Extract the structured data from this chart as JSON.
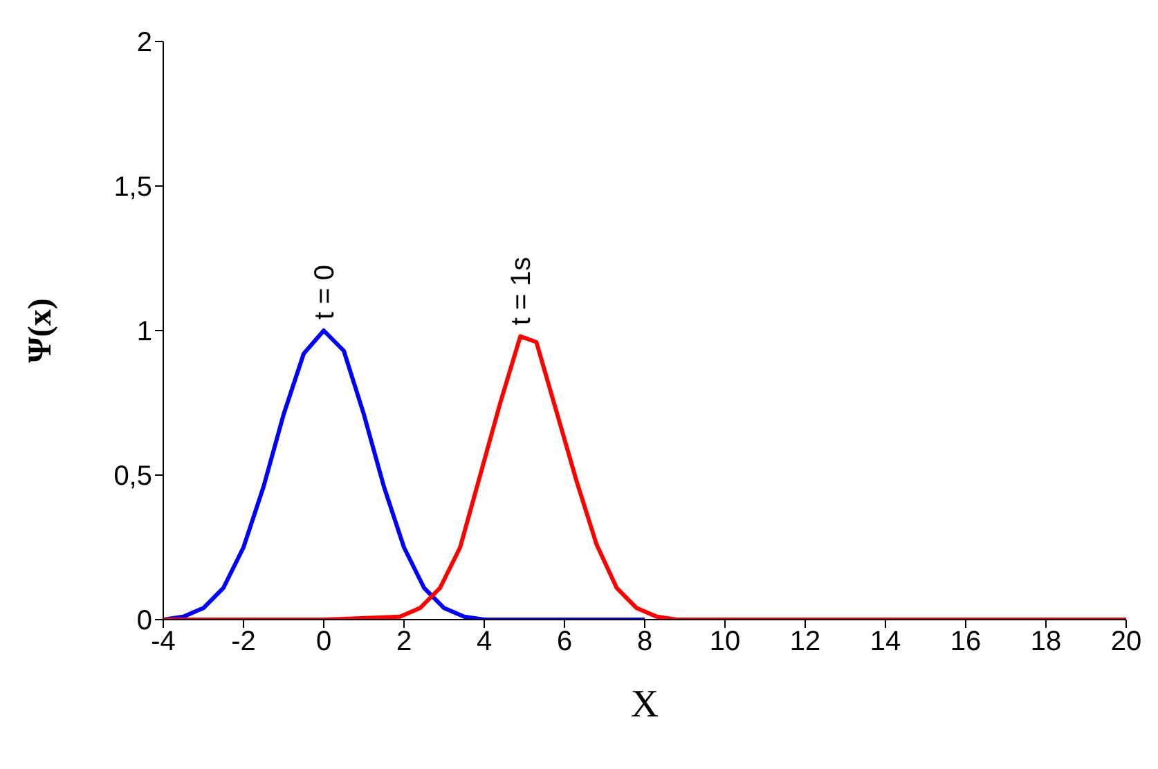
{
  "chart_data": {
    "type": "line",
    "xlabel": "X",
    "ylabel": "Ψ(x)",
    "xlim": [
      -4,
      20
    ],
    "ylim": [
      0,
      2
    ],
    "xticks": [
      -4,
      -2,
      0,
      2,
      4,
      6,
      8,
      10,
      12,
      14,
      16,
      18,
      20
    ],
    "yticks": [
      0,
      {
        "value": 0.5,
        "label": "0,5"
      },
      1,
      {
        "value": 1.5,
        "label": "1,5"
      },
      2
    ],
    "grid": false,
    "legend": false,
    "marker": "none",
    "line_style": "solid",
    "series": [
      {
        "color": "#0000ff",
        "x": [
          -4,
          -3.5,
          -3,
          -2.5,
          -2,
          -1.5,
          -1,
          -0.5,
          0,
          0.5,
          1,
          1.5,
          2,
          2.5,
          3,
          3.5,
          4,
          6,
          8
        ],
        "values": [
          0,
          0.01,
          0.04,
          0.11,
          0.25,
          0.46,
          0.71,
          0.92,
          1,
          0.93,
          0.71,
          0.46,
          0.25,
          0.11,
          0.04,
          0.01,
          0,
          0,
          0
        ]
      },
      {
        "color": "#ff0000",
        "x": [
          -4,
          0,
          1.9,
          2.4,
          2.9,
          3.4,
          3.9,
          4.4,
          4.9,
          5.3,
          5.8,
          6.3,
          6.8,
          7.3,
          7.8,
          8.3,
          8.8,
          10,
          12,
          14,
          16,
          18,
          20
        ],
        "values": [
          0,
          0,
          0.01,
          0.04,
          0.11,
          0.25,
          0.5,
          0.75,
          0.98,
          0.96,
          0.72,
          0.48,
          0.26,
          0.11,
          0.04,
          0.01,
          0,
          0,
          0,
          0,
          0,
          0,
          0
        ]
      }
    ],
    "annotations": [
      {
        "text": "t = 0",
        "x": 0,
        "y": 1
      },
      {
        "text": "t = 1s",
        "x": 4.9,
        "y": 0.98
      }
    ]
  }
}
